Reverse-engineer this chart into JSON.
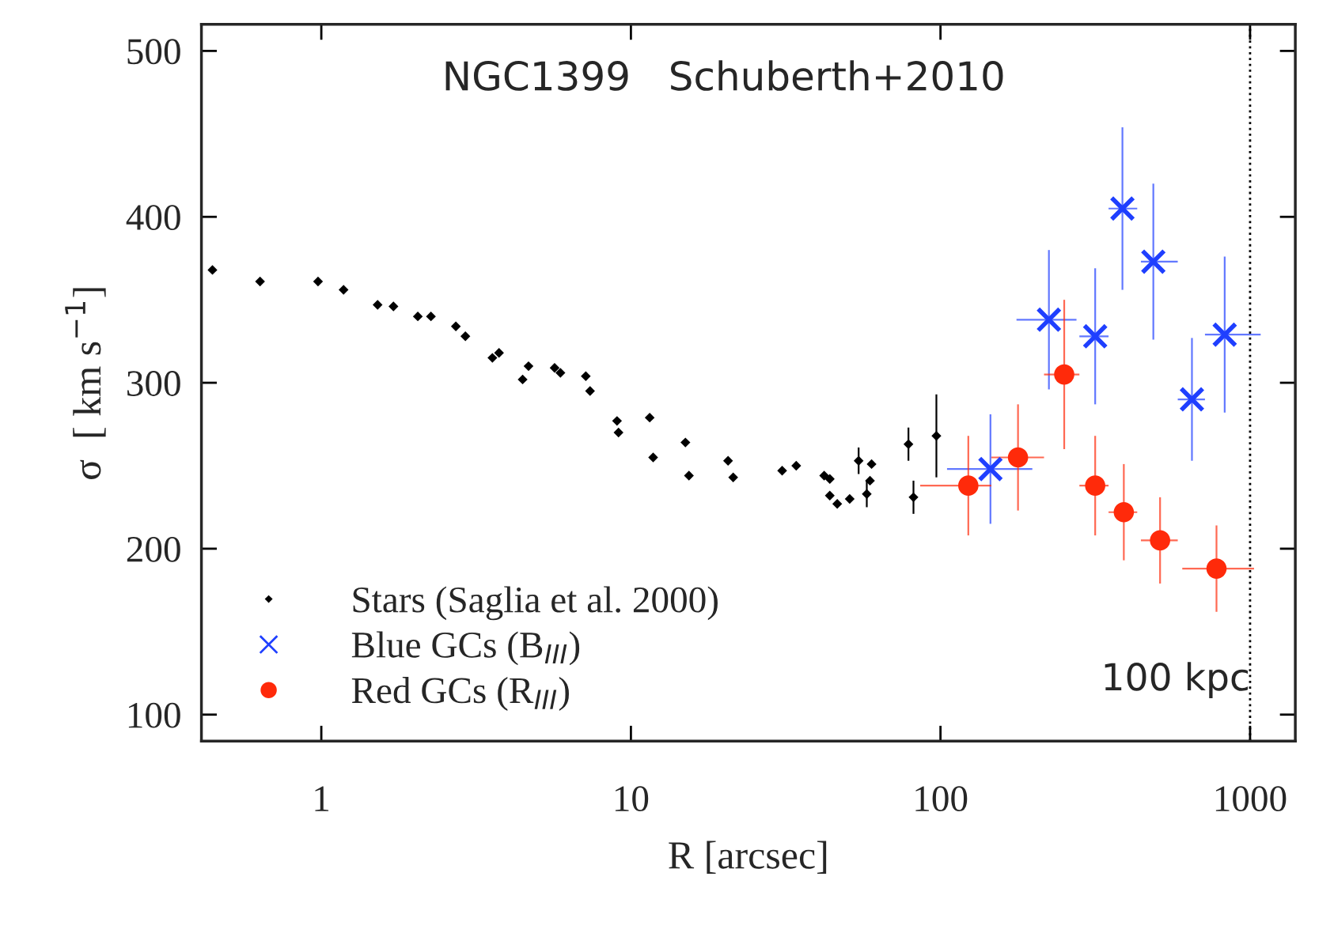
{
  "chart_data": {
    "type": "scatter",
    "xlabel": "R [arcsec]",
    "ylabel": "σ  [ km s$^{−1}$]",
    "log": "x",
    "xlim": [
      0.41,
      1400
    ],
    "ylim": [
      84,
      516
    ],
    "xticks": [
      1,
      10,
      100,
      1000
    ],
    "yticks": [
      100,
      200,
      300,
      400,
      500
    ],
    "grid": false,
    "legend": "bottom left",
    "series": [
      {
        "name": "Stars (Saglia et al. 2000)",
        "color": "#000000",
        "marker": "diamond",
        "x": [
          0.445,
          0.634,
          0.976,
          1.18,
          1.52,
          1.71,
          2.05,
          2.26,
          2.72,
          2.92,
          3.57,
          3.75,
          4.47,
          4.67,
          5.67,
          5.92,
          7.15,
          7.38,
          9.02,
          9.12,
          11.5,
          11.8,
          15.0,
          15.4,
          20.6,
          21.4,
          30.8,
          34.2,
          42.1,
          43.9,
          43.9,
          46.4,
          50.9,
          54.4,
          57.8,
          59.2,
          59.9,
          78.8,
          81.8,
          97.0
        ],
        "values": [
          368,
          361,
          361,
          356,
          347,
          346,
          340,
          340,
          334,
          328,
          315,
          318,
          302,
          310,
          309,
          306,
          304,
          295,
          277,
          270,
          279,
          255,
          264,
          244,
          253,
          243,
          247,
          250,
          244,
          242,
          232,
          227,
          230,
          253,
          233,
          241,
          251,
          263,
          231,
          268
        ],
        "errors": [
          null,
          null,
          null,
          null,
          null,
          null,
          null,
          null,
          null,
          null,
          null,
          null,
          null,
          null,
          null,
          null,
          null,
          null,
          null,
          null,
          null,
          null,
          null,
          null,
          null,
          null,
          null,
          null,
          null,
          null,
          null,
          null,
          null,
          8,
          8,
          null,
          null,
          10,
          10,
          25
        ]
      },
      {
        "name": "Blue GCs (B$_{III}$)",
        "color": "#1f3fff",
        "marker": "cross",
        "x": [
          145,
          224,
          316,
          387,
          487,
          649,
          828
        ],
        "values": [
          248,
          338,
          328,
          405,
          373,
          290,
          329
        ],
        "errors": [
          33,
          42,
          41,
          49,
          47,
          37,
          47
        ],
        "xerrors": [
          [
            105,
            198
          ],
          [
            176,
            275
          ],
          [
            281,
            349
          ],
          [
            349,
            432
          ],
          [
            444,
            584
          ],
          [
            584,
            715
          ],
          [
            715,
            1082
          ]
        ]
      },
      {
        "name": "Red GCs (R$_{III}$)",
        "color": "#ff2a0a",
        "marker": "circle",
        "x": [
          123,
          178,
          251,
          316,
          391,
          512,
          779
        ],
        "values": [
          238,
          255,
          305,
          238,
          222,
          205,
          188
        ],
        "errors": [
          30,
          32,
          45,
          30,
          29,
          26,
          26
        ],
        "xerrors": [
          [
            86,
            146
          ],
          [
            146,
            216
          ],
          [
            216,
            281
          ],
          [
            281,
            349
          ],
          [
            349,
            432
          ],
          [
            444,
            584
          ],
          [
            604,
            1030
          ]
        ]
      }
    ],
    "ref_lines": [
      {
        "axis": "x",
        "value": 1000,
        "label": "100 kpc",
        "line_style": "dotted",
        "color": "#000000"
      }
    ],
    "annotations": [
      "NGC1399   Schuberth+2010"
    ]
  }
}
